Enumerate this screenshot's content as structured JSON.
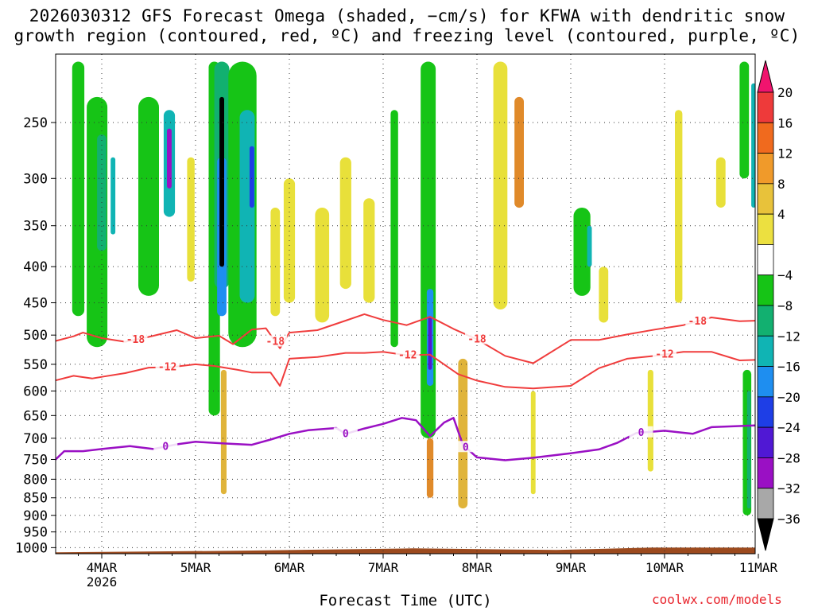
{
  "title": {
    "line1": "2026030312 GFS Forecast Omega (shaded, −cm/s) for KFWA with dendritic snow",
    "line2": "growth region (contoured, red, ºC) and freezing level (contoured, purple, ºC)"
  },
  "xlabel": "Forecast Time (UTC)",
  "credit": "coolwx.com/models",
  "chart_data": {
    "type": "heatmap",
    "title": "2026030312 GFS Forecast Omega (shaded, −cm/s) for KFWA with dendritic snow growth region (contoured, red, ºC) and freezing level (contoured, purple, ºC)",
    "xlabel": "Forecast Time (UTC)",
    "ylabel": "Pressure (hPa)",
    "x_range_days": [
      -0.5,
      7.0
    ],
    "x_ticks": [
      {
        "day": 0,
        "label": "4MAR",
        "sublabel": "2026"
      },
      {
        "day": 1,
        "label": "5MAR",
        "sublabel": ""
      },
      {
        "day": 2,
        "label": "6MAR",
        "sublabel": ""
      },
      {
        "day": 3,
        "label": "7MAR",
        "sublabel": ""
      },
      {
        "day": 4,
        "label": "8MAR",
        "sublabel": ""
      },
      {
        "day": 5,
        "label": "9MAR",
        "sublabel": ""
      },
      {
        "day": 6,
        "label": "10MAR",
        "sublabel": ""
      },
      {
        "day": 7,
        "label": "11MAR",
        "sublabel": ""
      }
    ],
    "y_range_hpa": [
      1020,
      200
    ],
    "y_ticks": [
      250,
      300,
      350,
      400,
      450,
      500,
      550,
      600,
      650,
      700,
      750,
      800,
      850,
      900,
      950,
      1000
    ],
    "colorbar": {
      "labels": [
        "20",
        "16",
        "12",
        "8",
        "4",
        "−4",
        "−8",
        "−12",
        "−16",
        "−20",
        "−24",
        "−28",
        "−32",
        "−36"
      ],
      "colors": [
        "#f0146e",
        "#ee3a3a",
        "#f06a1e",
        "#f09a2a",
        "#e8c23a",
        "#ece040",
        "#ffffff",
        "#16c416",
        "#12b070",
        "#10b4b4",
        "#1e8ef0",
        "#1e3ee6",
        "#5018d4",
        "#9a10c4",
        "#a8a8a8",
        "#000000"
      ]
    },
    "omega_colors": {
      "up4": "#e8e03a",
      "up8": "#e0b43a",
      "up12": "#e08a2a",
      "dn4": "#16c416",
      "dn8": "#12b070",
      "dn12": "#10b4b4",
      "dn16": "#1e8ef0",
      "dn20": "#1e3ee6",
      "dn24": "#5018d4",
      "dn28": "#9a10c4",
      "dn32": "#000000",
      "ground": "#9c4a1e"
    },
    "omega_features": [
      {
        "day": -0.25,
        "p_top": 205,
        "p_bot": 470,
        "w": 0.13,
        "c": "dn4"
      },
      {
        "day": -0.05,
        "p_top": 230,
        "p_bot": 520,
        "w": 0.22,
        "c": "dn4"
      },
      {
        "day": 0.0,
        "p_top": 260,
        "p_bot": 380,
        "w": 0.1,
        "c": "dn8"
      },
      {
        "day": 0.12,
        "p_top": 280,
        "p_bot": 360,
        "w": 0.05,
        "c": "dn12"
      },
      {
        "day": 0.5,
        "p_top": 230,
        "p_bot": 440,
        "w": 0.22,
        "c": "dn4"
      },
      {
        "day": 0.72,
        "p_top": 240,
        "p_bot": 340,
        "w": 0.12,
        "c": "dn12"
      },
      {
        "day": 0.72,
        "p_top": 255,
        "p_bot": 310,
        "w": 0.05,
        "c": "dn28"
      },
      {
        "day": 0.95,
        "p_top": 280,
        "p_bot": 420,
        "w": 0.08,
        "c": "up4"
      },
      {
        "day": 1.2,
        "p_top": 205,
        "p_bot": 650,
        "w": 0.12,
        "c": "dn4"
      },
      {
        "day": 1.28,
        "p_top": 205,
        "p_bot": 430,
        "w": 0.16,
        "c": "dn8"
      },
      {
        "day": 1.28,
        "p_top": 280,
        "p_bot": 470,
        "w": 0.1,
        "c": "dn16"
      },
      {
        "day": 1.28,
        "p_top": 230,
        "p_bot": 400,
        "w": 0.05,
        "c": "dn32"
      },
      {
        "day": 1.3,
        "p_top": 560,
        "p_bot": 840,
        "w": 0.06,
        "c": "up8"
      },
      {
        "day": 1.5,
        "p_top": 205,
        "p_bot": 520,
        "w": 0.3,
        "c": "dn4"
      },
      {
        "day": 1.55,
        "p_top": 240,
        "p_bot": 450,
        "w": 0.16,
        "c": "dn12"
      },
      {
        "day": 1.6,
        "p_top": 270,
        "p_bot": 330,
        "w": 0.05,
        "c": "dn20"
      },
      {
        "day": 1.85,
        "p_top": 330,
        "p_bot": 470,
        "w": 0.1,
        "c": "up4"
      },
      {
        "day": 2.0,
        "p_top": 300,
        "p_bot": 450,
        "w": 0.12,
        "c": "up4"
      },
      {
        "day": 2.35,
        "p_top": 330,
        "p_bot": 480,
        "w": 0.15,
        "c": "up4"
      },
      {
        "day": 2.6,
        "p_top": 280,
        "p_bot": 430,
        "w": 0.12,
        "c": "up4"
      },
      {
        "day": 2.85,
        "p_top": 320,
        "p_bot": 450,
        "w": 0.12,
        "c": "up4"
      },
      {
        "day": 3.12,
        "p_top": 240,
        "p_bot": 520,
        "w": 0.08,
        "c": "dn4"
      },
      {
        "day": 3.48,
        "p_top": 205,
        "p_bot": 700,
        "w": 0.16,
        "c": "dn4"
      },
      {
        "day": 3.5,
        "p_top": 430,
        "p_bot": 590,
        "w": 0.07,
        "c": "dn16"
      },
      {
        "day": 3.5,
        "p_top": 470,
        "p_bot": 560,
        "w": 0.04,
        "c": "dn24"
      },
      {
        "day": 3.5,
        "p_top": 700,
        "p_bot": 850,
        "w": 0.07,
        "c": "up12"
      },
      {
        "day": 3.85,
        "p_top": 540,
        "p_bot": 880,
        "w": 0.1,
        "c": "up8"
      },
      {
        "day": 4.25,
        "p_top": 205,
        "p_bot": 460,
        "w": 0.15,
        "c": "up4"
      },
      {
        "day": 4.45,
        "p_top": 230,
        "p_bot": 330,
        "w": 0.1,
        "c": "up12"
      },
      {
        "day": 4.6,
        "p_top": 600,
        "p_bot": 840,
        "w": 0.05,
        "c": "up4"
      },
      {
        "day": 5.12,
        "p_top": 330,
        "p_bot": 440,
        "w": 0.18,
        "c": "dn4"
      },
      {
        "day": 5.2,
        "p_top": 350,
        "p_bot": 400,
        "w": 0.05,
        "c": "dn12"
      },
      {
        "day": 5.35,
        "p_top": 400,
        "p_bot": 480,
        "w": 0.1,
        "c": "up4"
      },
      {
        "day": 5.85,
        "p_top": 560,
        "p_bot": 780,
        "w": 0.06,
        "c": "up4"
      },
      {
        "day": 6.15,
        "p_top": 240,
        "p_bot": 450,
        "w": 0.08,
        "c": "up4"
      },
      {
        "day": 6.6,
        "p_top": 280,
        "p_bot": 330,
        "w": 0.1,
        "c": "up4"
      },
      {
        "day": 6.85,
        "p_top": 205,
        "p_bot": 300,
        "w": 0.1,
        "c": "dn4"
      },
      {
        "day": 6.88,
        "p_top": 560,
        "p_bot": 900,
        "w": 0.09,
        "c": "dn4"
      },
      {
        "day": 6.9,
        "p_top": 600,
        "p_bot": 880,
        "w": 0.04,
        "c": "dn8"
      },
      {
        "day": 6.95,
        "p_top": 220,
        "p_bot": 330,
        "w": 0.05,
        "c": "dn12"
      }
    ],
    "dgz_upper_minus18": {
      "label": "-18",
      "label_days": [
        0.36,
        1.85,
        4.0,
        6.35
      ],
      "days": [
        -0.5,
        -0.3,
        -0.2,
        0.0,
        0.25,
        0.5,
        0.8,
        1.0,
        1.25,
        1.4,
        1.6,
        1.75,
        1.9,
        2.0,
        2.3,
        2.6,
        2.8,
        3.0,
        3.25,
        3.5,
        3.75,
        4.0,
        4.3,
        4.6,
        5.0,
        5.3,
        5.6,
        5.9,
        6.2,
        6.5,
        6.8,
        7.0
      ],
      "hpa": [
        510,
        502,
        496,
        505,
        511,
        503,
        492,
        505,
        501,
        515,
        491,
        489,
        522,
        496,
        492,
        477,
        467,
        476,
        484,
        471,
        490,
        507,
        535,
        548,
        508,
        508,
        499,
        491,
        484,
        472,
        478,
        477
      ]
    },
    "dgz_lower_minus12": {
      "label": "-12",
      "label_days": [
        0.7,
        3.26,
        6.0
      ],
      "days": [
        -0.5,
        -0.3,
        -0.1,
        0.0,
        0.25,
        0.5,
        0.75,
        1.0,
        1.2,
        1.45,
        1.6,
        1.8,
        1.9,
        2.0,
        2.3,
        2.6,
        2.8,
        3.0,
        3.25,
        3.5,
        3.8,
        4.0,
        4.3,
        4.6,
        5.0,
        5.3,
        5.6,
        5.9,
        6.2,
        6.5,
        6.8,
        7.0
      ],
      "hpa": [
        580,
        571,
        576,
        573,
        566,
        556,
        555,
        550,
        553,
        560,
        565,
        565,
        590,
        540,
        537,
        530,
        530,
        528,
        534,
        533,
        568,
        580,
        592,
        595,
        590,
        557,
        540,
        535,
        528,
        528,
        543,
        542
      ]
    },
    "freezing_level_0C": {
      "label": "0",
      "label_days": [
        0.68,
        2.6,
        3.88,
        5.75
      ],
      "days": [
        -0.5,
        -0.4,
        -0.2,
        0.0,
        0.3,
        0.55,
        0.8,
        1.0,
        1.3,
        1.6,
        1.8,
        2.0,
        2.2,
        2.5,
        2.6,
        2.8,
        3.0,
        3.2,
        3.35,
        3.5,
        3.65,
        3.75,
        3.85,
        4.0,
        4.3,
        4.6,
        5.0,
        5.3,
        5.5,
        5.7,
        6.0,
        6.3,
        6.5,
        7.0
      ],
      "hpa": [
        752,
        730,
        730,
        725,
        718,
        725,
        714,
        708,
        712,
        715,
        703,
        690,
        682,
        677,
        690,
        678,
        668,
        655,
        660,
        695,
        665,
        655,
        715,
        745,
        752,
        746,
        735,
        726,
        710,
        688,
        683,
        690,
        675,
        671
      ]
    }
  }
}
